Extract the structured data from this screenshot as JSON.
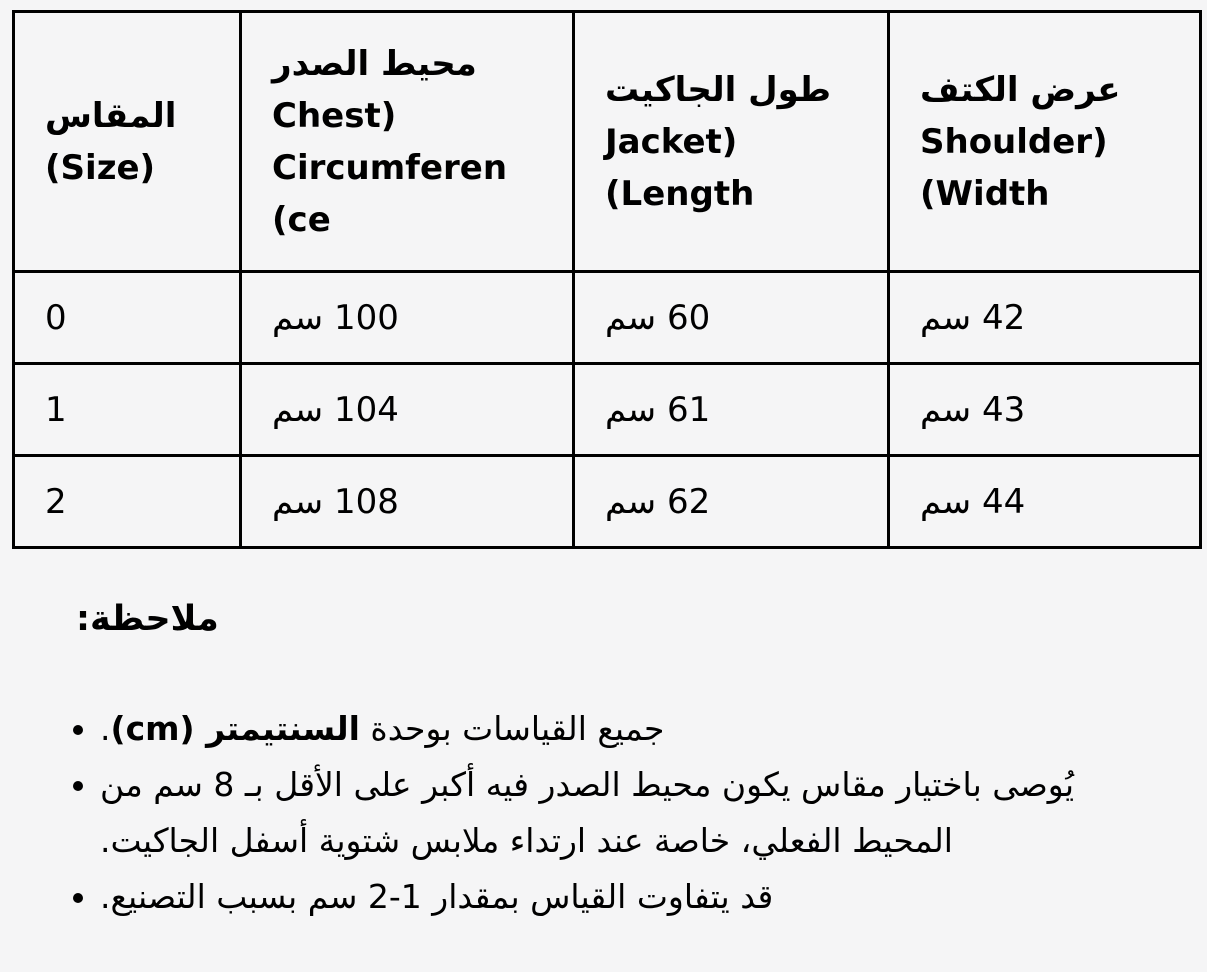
{
  "table": {
    "headers": [
      {
        "lines": [
          "المقاس",
          "(Size)"
        ]
      },
      {
        "lines": [
          "محيط الصدر",
          "(Chest",
          "Circumferen",
          "ce)"
        ]
      },
      {
        "lines": [
          "طول الجاكيت",
          "(Jacket",
          "Length)"
        ]
      },
      {
        "lines": [
          "عرض الكتف",
          "(Shoulder",
          "Width)"
        ]
      }
    ],
    "rows": [
      {
        "size": "0",
        "chest": "100 سم",
        "length": "60 سم",
        "shoulder": "42 سم"
      },
      {
        "size": "1",
        "chest": "104 سم",
        "length": "61 سم",
        "shoulder": "43 سم"
      },
      {
        "size": "2",
        "chest": "108 سم",
        "length": "62 سم",
        "shoulder": "44 سم"
      }
    ]
  },
  "notes": {
    "heading": "ملاحظة:",
    "items": [
      {
        "pre": "جميع القياسات بوحدة ",
        "bold": "السنتيمتر (cm)",
        "post": "."
      },
      {
        "pre": "يُوصى باختيار مقاس يكون محيط الصدر فيه أكبر على الأقل بـ 8 سم من المحيط الفعلي، خاصة عند ارتداء ملابس شتوية أسفل الجاكيت.",
        "bold": "",
        "post": ""
      },
      {
        "pre": "قد يتفاوت القياس بمقدار 1-2 سم بسبب التصنيع.",
        "bold": "",
        "post": ""
      }
    ]
  },
  "colors": {
    "background": "#f5f5f6",
    "text": "#000000",
    "border": "#000000"
  }
}
